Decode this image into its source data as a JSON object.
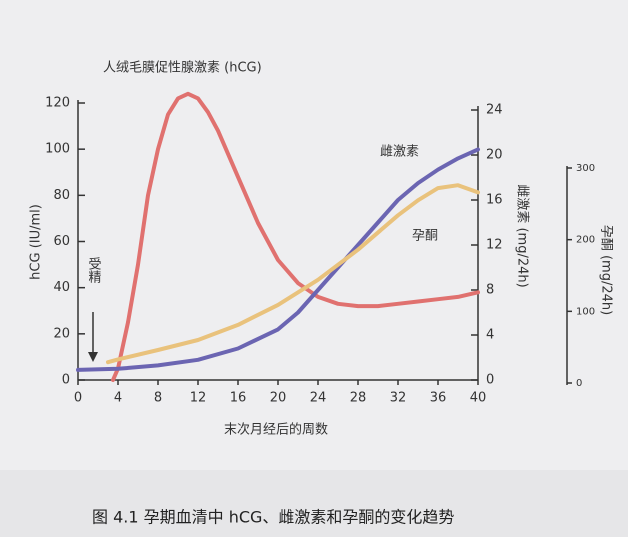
{
  "chart_data": {
    "type": "line",
    "xlabel": "末次月经后的周数",
    "ylabel": "hCG (IU/ml)",
    "y2label": "雌激素 (mg/24h)",
    "y3label": "孕酮 (mg/24h)",
    "annotation": "受精",
    "caption": "图 4.1   孕期血清中 hCG、雌激素和孕酮的变化趋势",
    "xlim": [
      0,
      40
    ],
    "xticks": [
      0,
      4,
      8,
      12,
      16,
      20,
      24,
      28,
      32,
      36,
      40
    ],
    "ylim": [
      0,
      120
    ],
    "yticks": [
      0,
      20,
      40,
      60,
      80,
      100,
      120
    ],
    "y2lim": [
      0,
      24
    ],
    "y2ticks": [
      0,
      4,
      8,
      12,
      16,
      20,
      24
    ],
    "y3lim": [
      0,
      300
    ],
    "y3ticks": [
      0,
      100,
      200,
      300
    ],
    "series": [
      {
        "name": "人绒毛膜促性腺激素 (hCG)",
        "color": "#e0716f",
        "x": [
          3.5,
          4,
          5,
          6,
          7,
          8,
          9,
          10,
          11,
          12,
          13,
          14,
          16,
          18,
          20,
          22,
          24,
          26,
          28,
          30,
          32,
          34,
          36,
          38,
          40
        ],
        "values": [
          0,
          5,
          25,
          50,
          80,
          100,
          115,
          122,
          124,
          122,
          116,
          108,
          88,
          68,
          52,
          42,
          36,
          33,
          32,
          32,
          33,
          34,
          35,
          36,
          38
        ]
      },
      {
        "name": "雌激素",
        "color": "#6b65b2",
        "axis": "y2",
        "x": [
          0,
          4,
          8,
          12,
          16,
          20,
          22,
          24,
          26,
          28,
          30,
          32,
          34,
          36,
          38,
          40
        ],
        "values": [
          0.9,
          1.0,
          1.3,
          1.8,
          2.8,
          4.5,
          6,
          8,
          10,
          12,
          14,
          16,
          17.5,
          18.7,
          19.7,
          20.5
        ]
      },
      {
        "name": "孕酮",
        "color": "#e9c27c",
        "axis": "y3",
        "x": [
          3,
          4,
          8,
          12,
          16,
          20,
          24,
          28,
          32,
          34,
          36,
          38,
          40
        ],
        "values": [
          29,
          33,
          46,
          60,
          81,
          109,
          144,
          186,
          234,
          255,
          272,
          276,
          266
        ]
      }
    ]
  }
}
